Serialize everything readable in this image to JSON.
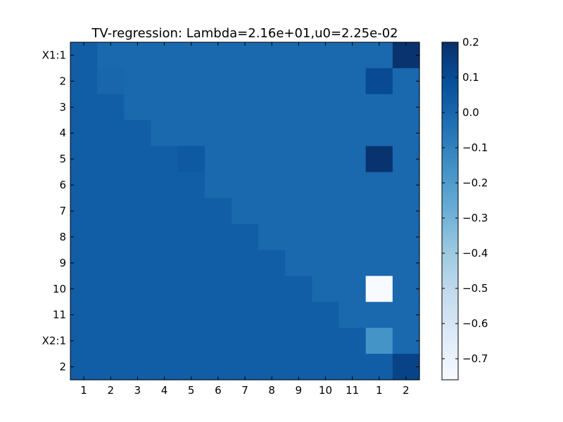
{
  "chart_data": {
    "type": "heatmap",
    "title": "TV-regression: Lambda=2.16e+01,u0=2.25e-02",
    "xlabel": "",
    "ylabel": "",
    "x_tick_labels": [
      "1",
      "2",
      "3",
      "4",
      "5",
      "6",
      "7",
      "8",
      "9",
      "10",
      "11",
      "1",
      "2"
    ],
    "y_tick_labels": [
      "X1:1",
      "2",
      "3",
      "4",
      "5",
      "6",
      "7",
      "8",
      "9",
      "10",
      "11",
      "X2:1",
      "2"
    ],
    "colormap": "Blues",
    "vmin": -0.76,
    "vmax": 0.2,
    "colorbar_ticks": [
      0.2,
      0.1,
      0.0,
      -0.1,
      -0.2,
      -0.3,
      -0.4,
      -0.5,
      -0.6,
      -0.7
    ],
    "colorbar_tick_labels": [
      "0.2",
      "0.1",
      "0.0",
      "−0.1",
      "−0.2",
      "−0.3",
      "−0.4",
      "−0.5",
      "−0.6",
      "−0.7"
    ],
    "grid": false,
    "values": [
      [
        0.03,
        -0.005,
        -0.005,
        -0.005,
        -0.005,
        -0.005,
        -0.005,
        -0.005,
        -0.005,
        -0.005,
        -0.005,
        -0.005,
        0.19
      ],
      [
        0.03,
        0.0,
        -0.005,
        -0.005,
        -0.005,
        -0.005,
        -0.005,
        -0.005,
        -0.005,
        -0.005,
        -0.005,
        0.1,
        -0.005
      ],
      [
        0.03,
        0.03,
        -0.005,
        -0.005,
        -0.005,
        -0.005,
        -0.005,
        -0.005,
        -0.005,
        -0.005,
        -0.005,
        -0.005,
        -0.005
      ],
      [
        0.03,
        0.03,
        0.03,
        -0.005,
        -0.005,
        -0.005,
        -0.005,
        -0.005,
        -0.005,
        -0.005,
        -0.005,
        -0.005,
        -0.005
      ],
      [
        0.03,
        0.03,
        0.03,
        0.03,
        0.05,
        -0.005,
        -0.005,
        -0.005,
        -0.005,
        -0.005,
        -0.005,
        0.19,
        -0.005
      ],
      [
        0.03,
        0.03,
        0.03,
        0.03,
        0.03,
        -0.005,
        -0.005,
        -0.005,
        -0.005,
        -0.005,
        -0.005,
        -0.005,
        -0.005
      ],
      [
        0.03,
        0.03,
        0.03,
        0.03,
        0.03,
        0.03,
        -0.005,
        -0.005,
        -0.005,
        -0.005,
        -0.005,
        -0.005,
        -0.005
      ],
      [
        0.03,
        0.03,
        0.03,
        0.03,
        0.03,
        0.03,
        0.03,
        -0.005,
        -0.005,
        -0.005,
        -0.005,
        -0.005,
        -0.005
      ],
      [
        0.03,
        0.03,
        0.03,
        0.03,
        0.03,
        0.03,
        0.03,
        0.03,
        -0.005,
        -0.005,
        -0.005,
        -0.005,
        -0.005
      ],
      [
        0.03,
        0.03,
        0.03,
        0.03,
        0.03,
        0.03,
        0.03,
        0.03,
        0.03,
        -0.005,
        -0.005,
        -0.76,
        -0.005
      ],
      [
        0.03,
        0.03,
        0.03,
        0.03,
        0.03,
        0.03,
        0.03,
        0.03,
        0.03,
        0.03,
        -0.005,
        -0.005,
        -0.005
      ],
      [
        0.03,
        0.03,
        0.03,
        0.03,
        0.03,
        0.03,
        0.03,
        0.03,
        0.03,
        0.03,
        0.03,
        -0.17,
        -0.005
      ],
      [
        0.03,
        0.03,
        0.03,
        0.03,
        0.03,
        0.03,
        0.03,
        0.03,
        0.03,
        0.03,
        0.03,
        0.03,
        0.13
      ]
    ]
  }
}
